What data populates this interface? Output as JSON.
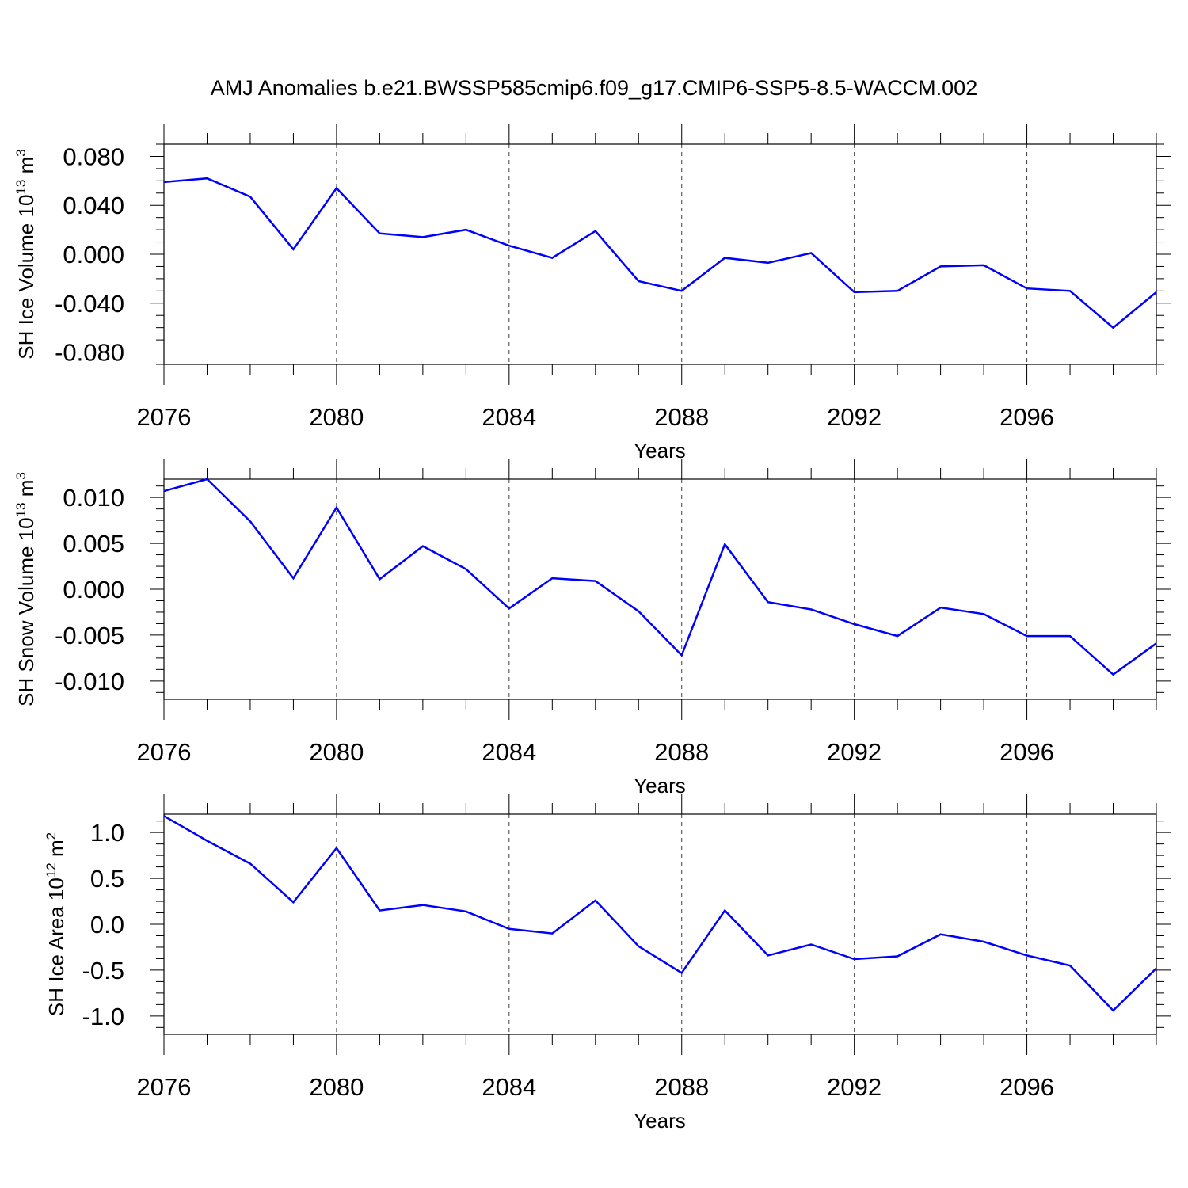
{
  "title": "AMJ Anomalies b.e21.BWSSP585cmip6.f09_g17.CMIP6-SSP5-8.5-WACCM.002",
  "chart_data": [
    {
      "type": "line",
      "ylabel": "SH Ice Volume 10",
      "ylabel_exp": "13",
      "ylabel_unit": " m",
      "ylabel_unit_exp": "3",
      "xlabel": "Years",
      "xlim": [
        2076,
        2099
      ],
      "ylim": [
        -0.09,
        0.09
      ],
      "yticks": [
        0.08,
        0.04,
        0.0,
        -0.04,
        -0.08
      ],
      "ytick_labels": [
        "0.080",
        "0.040",
        "0.000",
        "-0.040",
        "-0.080"
      ],
      "xticks": [
        2076,
        2080,
        2084,
        2088,
        2092,
        2096
      ],
      "xtick_labels": [
        "2076",
        "2080",
        "2084",
        "2088",
        "2092",
        "2096"
      ],
      "grid": "dashed vertical at labeled years",
      "color": "#0000ff",
      "x": [
        2076,
        2077,
        2078,
        2079,
        2080,
        2081,
        2082,
        2083,
        2084,
        2085,
        2086,
        2087,
        2088,
        2089,
        2090,
        2091,
        2092,
        2093,
        2094,
        2095,
        2096,
        2097,
        2098,
        2099
      ],
      "y": [
        0.059,
        0.062,
        0.047,
        0.004,
        0.054,
        0.017,
        0.014,
        0.02,
        0.007,
        -0.003,
        0.019,
        -0.022,
        -0.03,
        -0.003,
        -0.007,
        0.001,
        -0.031,
        -0.03,
        -0.01,
        -0.009,
        -0.028,
        -0.03,
        -0.06,
        -0.031
      ]
    },
    {
      "type": "line",
      "ylabel": "SH Snow Volume 10",
      "ylabel_exp": "13",
      "ylabel_unit": " m",
      "ylabel_unit_exp": "3",
      "xlabel": "Years",
      "xlim": [
        2076,
        2099
      ],
      "ylim": [
        -0.012,
        0.012
      ],
      "yticks": [
        0.01,
        0.005,
        0.0,
        -0.005,
        -0.01
      ],
      "ytick_labels": [
        "0.010",
        "0.005",
        "0.000",
        "-0.005",
        "-0.010"
      ],
      "xticks": [
        2076,
        2080,
        2084,
        2088,
        2092,
        2096
      ],
      "xtick_labels": [
        "2076",
        "2080",
        "2084",
        "2088",
        "2092",
        "2096"
      ],
      "grid": "dashed vertical at labeled years",
      "color": "#0000ff",
      "x": [
        2076,
        2077,
        2078,
        2079,
        2080,
        2081,
        2082,
        2083,
        2084,
        2085,
        2086,
        2087,
        2088,
        2089,
        2090,
        2091,
        2092,
        2093,
        2094,
        2095,
        2096,
        2097,
        2098,
        2099
      ],
      "y": [
        0.0107,
        0.012,
        0.0074,
        0.0012,
        0.0089,
        0.0011,
        0.0047,
        0.0022,
        -0.0021,
        0.0012,
        0.0009,
        -0.0024,
        -0.0072,
        0.0049,
        -0.0014,
        -0.0022,
        -0.0038,
        -0.0051,
        -0.002,
        -0.0027,
        -0.0051,
        -0.0051,
        -0.0093,
        -0.0059
      ]
    },
    {
      "type": "line",
      "ylabel": "SH Ice Area 10",
      "ylabel_exp": "12",
      "ylabel_unit": " m",
      "ylabel_unit_exp": "2",
      "xlabel": "Years",
      "xlim": [
        2076,
        2099
      ],
      "ylim": [
        -1.2,
        1.2
      ],
      "yticks": [
        1.0,
        0.5,
        0.0,
        -0.5,
        -1.0
      ],
      "ytick_labels": [
        "1.0",
        "0.5",
        "0.0",
        "-0.5",
        "-1.0"
      ],
      "xticks": [
        2076,
        2080,
        2084,
        2088,
        2092,
        2096
      ],
      "xtick_labels": [
        "2076",
        "2080",
        "2084",
        "2088",
        "2092",
        "2096"
      ],
      "grid": "dashed vertical at labeled years",
      "color": "#0000ff",
      "x": [
        2076,
        2077,
        2078,
        2079,
        2080,
        2081,
        2082,
        2083,
        2084,
        2085,
        2086,
        2087,
        2088,
        2089,
        2090,
        2091,
        2092,
        2093,
        2094,
        2095,
        2096,
        2097,
        2098,
        2099
      ],
      "y": [
        1.18,
        0.91,
        0.66,
        0.24,
        0.83,
        0.15,
        0.21,
        0.14,
        -0.05,
        -0.1,
        0.26,
        -0.24,
        -0.53,
        0.15,
        -0.34,
        -0.22,
        -0.38,
        -0.35,
        -0.11,
        -0.19,
        -0.34,
        -0.45,
        -0.94,
        -0.48
      ]
    }
  ]
}
